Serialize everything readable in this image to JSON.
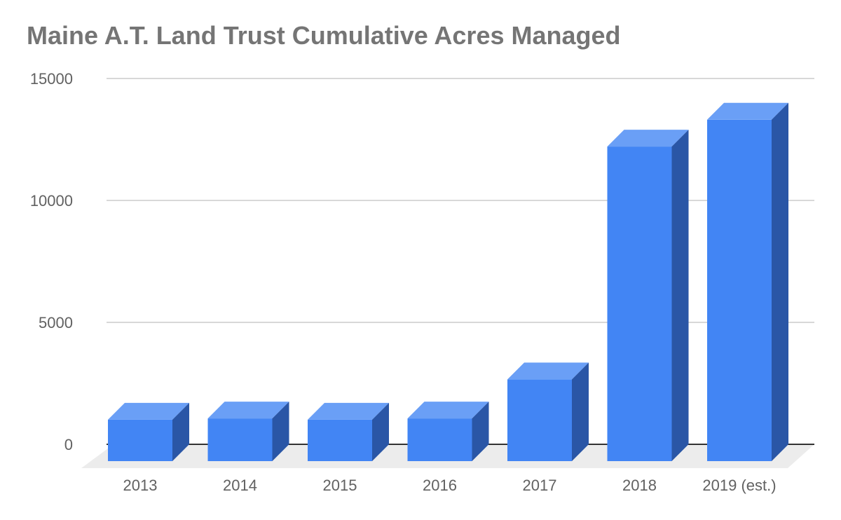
{
  "chart_data": {
    "type": "bar",
    "title": "Maine A.T. Land Trust Cumulative Acres Managed",
    "categories": [
      "2013",
      "2014",
      "2015",
      "2016",
      "2017",
      "2018",
      "2019 (est.)"
    ],
    "series": [
      {
        "values": [
          1700,
          1750,
          1700,
          1750,
          3350,
          12900,
          14000
        ]
      }
    ],
    "ylim": [
      0,
      15000
    ],
    "yticks": [
      "0",
      "5000",
      "10000",
      "15000"
    ],
    "grid": true,
    "style": "3d",
    "colors": {
      "front": "#4285f4",
      "side": "#2a56a6",
      "top": "#6a9ff6",
      "floor": "#ececec",
      "grid": "#cccccc",
      "baseline": "#333333"
    }
  }
}
